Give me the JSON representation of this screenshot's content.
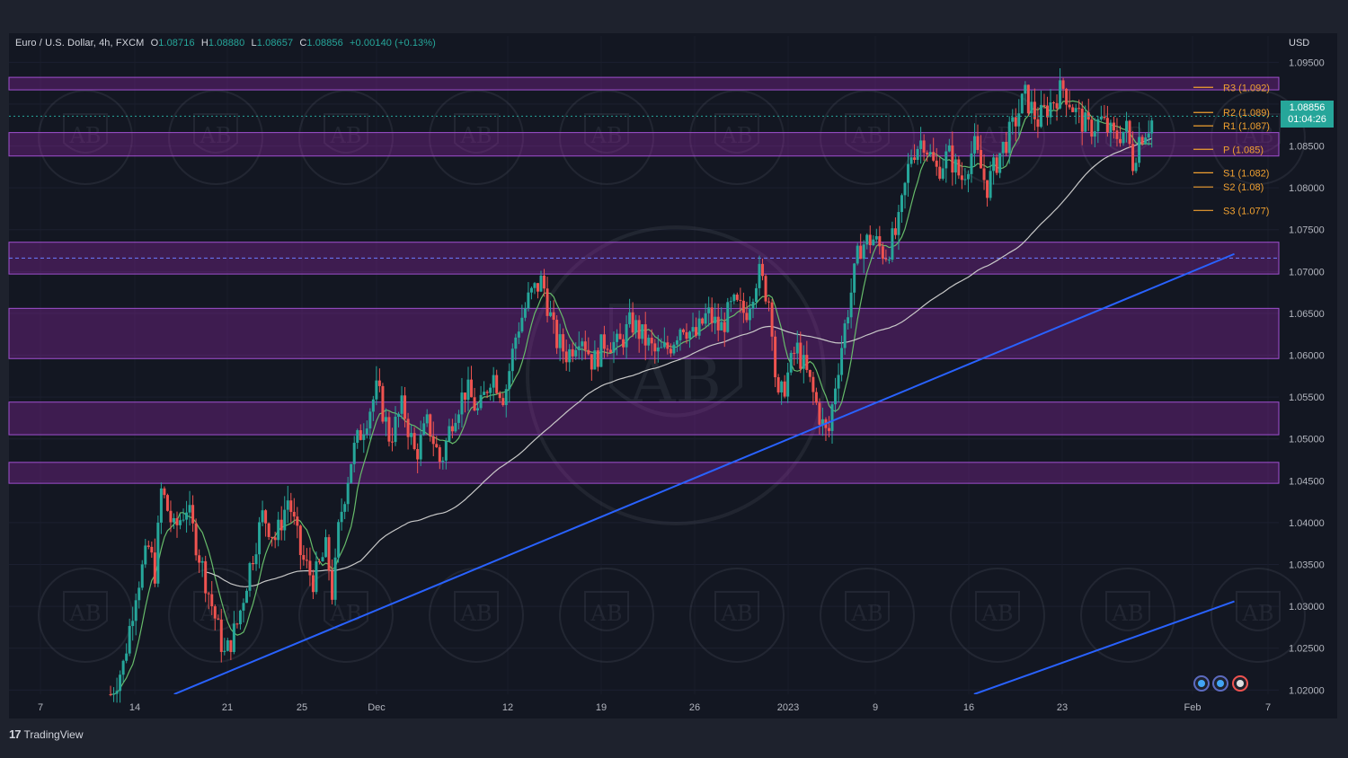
{
  "header": {
    "symbol": "Euro / U.S. Dollar, 4h, FXCM",
    "o_label": "O",
    "o_value": "1.08716",
    "h_label": "H",
    "h_value": "1.08880",
    "l_label": "L",
    "l_value": "1.08657",
    "c_label": "C",
    "c_value": "1.08856",
    "change": "+0.00140 (+0.13%)"
  },
  "currency": "USD",
  "last_price": {
    "price": "1.08856",
    "countdown": "01:04:26"
  },
  "branding": {
    "name": "TradingView",
    "mark": "17"
  },
  "chart_data": {
    "type": "candlestick",
    "symbol": "EURUSD",
    "timeframe": "4h",
    "ylim": [
      1.0195,
      1.096
    ],
    "y_ticks": [
      "1.02000",
      "1.02500",
      "1.03000",
      "1.03500",
      "1.04000",
      "1.04500",
      "1.05000",
      "1.05500",
      "1.06000",
      "1.06500",
      "1.07000",
      "1.07500",
      "1.08000",
      "1.08500",
      "1.09000",
      "1.09500"
    ],
    "x_ticks": [
      "7",
      "14",
      "21",
      "25",
      "Dec",
      "12",
      "19",
      "26",
      "2023",
      "9",
      "16",
      "23",
      "Feb",
      "7"
    ],
    "price_path": [
      [
        0.08,
        1.0195
      ],
      [
        0.09,
        1.023
      ],
      [
        0.1,
        1.032
      ],
      [
        0.11,
        1.037
      ],
      [
        0.115,
        1.034
      ],
      [
        0.12,
        1.044
      ],
      [
        0.13,
        1.039
      ],
      [
        0.14,
        1.042
      ],
      [
        0.15,
        1.036
      ],
      [
        0.16,
        1.03
      ],
      [
        0.17,
        1.024
      ],
      [
        0.18,
        1.028
      ],
      [
        0.19,
        1.035
      ],
      [
        0.2,
        1.041
      ],
      [
        0.21,
        1.038
      ],
      [
        0.22,
        1.043
      ],
      [
        0.23,
        1.036
      ],
      [
        0.24,
        1.033
      ],
      [
        0.25,
        1.037
      ],
      [
        0.255,
        1.031
      ],
      [
        0.26,
        1.04
      ],
      [
        0.27,
        1.048
      ],
      [
        0.28,
        1.052
      ],
      [
        0.29,
        1.056
      ],
      [
        0.3,
        1.05
      ],
      [
        0.31,
        1.054
      ],
      [
        0.32,
        1.048
      ],
      [
        0.33,
        1.052
      ],
      [
        0.34,
        1.047
      ],
      [
        0.35,
        1.053
      ],
      [
        0.36,
        1.056
      ],
      [
        0.37,
        1.053
      ],
      [
        0.38,
        1.058
      ],
      [
        0.39,
        1.055
      ],
      [
        0.4,
        1.063
      ],
      [
        0.41,
        1.067
      ],
      [
        0.42,
        1.069
      ],
      [
        0.43,
        1.062
      ],
      [
        0.44,
        1.06
      ],
      [
        0.45,
        1.063
      ],
      [
        0.46,
        1.059
      ],
      [
        0.47,
        1.062
      ],
      [
        0.48,
        1.061
      ],
      [
        0.49,
        1.064
      ],
      [
        0.5,
        1.062
      ],
      [
        0.51,
        1.06
      ],
      [
        0.52,
        1.061
      ],
      [
        0.53,
        1.064
      ],
      [
        0.54,
        1.062
      ],
      [
        0.55,
        1.065
      ],
      [
        0.56,
        1.063
      ],
      [
        0.57,
        1.066
      ],
      [
        0.58,
        1.065
      ],
      [
        0.59,
        1.07
      ],
      [
        0.6,
        1.066
      ],
      [
        0.605,
        1.054
      ],
      [
        0.61,
        1.056
      ],
      [
        0.62,
        1.061
      ],
      [
        0.63,
        1.057
      ],
      [
        0.64,
        1.052
      ],
      [
        0.645,
        1.05
      ],
      [
        0.65,
        1.056
      ],
      [
        0.66,
        1.065
      ],
      [
        0.67,
        1.073
      ],
      [
        0.68,
        1.074
      ],
      [
        0.69,
        1.072
      ],
      [
        0.7,
        1.075
      ],
      [
        0.71,
        1.084
      ],
      [
        0.72,
        1.086
      ],
      [
        0.73,
        1.082
      ],
      [
        0.74,
        1.084
      ],
      [
        0.75,
        1.081
      ],
      [
        0.76,
        1.085
      ],
      [
        0.77,
        1.08
      ],
      [
        0.78,
        1.084
      ],
      [
        0.79,
        1.087
      ],
      [
        0.8,
        1.091
      ],
      [
        0.81,
        1.088
      ],
      [
        0.82,
        1.09
      ],
      [
        0.83,
        1.092
      ],
      [
        0.84,
        1.089
      ],
      [
        0.85,
        1.087
      ],
      [
        0.86,
        1.088
      ],
      [
        0.87,
        1.086
      ],
      [
        0.88,
        1.087
      ],
      [
        0.885,
        1.083
      ],
      [
        0.89,
        1.086
      ],
      [
        0.9,
        1.088
      ]
    ],
    "series": [
      {
        "name": "fast MA",
        "color": "#66bb6a"
      },
      {
        "name": "slow MA",
        "color": "#c8c8c8"
      }
    ],
    "zones": [
      {
        "from": 1.0917,
        "to": 1.0932
      },
      {
        "from": 1.0838,
        "to": 1.0866
      },
      {
        "from": 1.0697,
        "to": 1.0735,
        "midline": 1.0716
      },
      {
        "from": 1.0596,
        "to": 1.0656
      },
      {
        "from": 1.0505,
        "to": 1.0544
      },
      {
        "from": 1.0447,
        "to": 1.0472
      }
    ],
    "trendlines": [
      {
        "x": [
          0.13,
          0.965
        ],
        "y": [
          1.0195,
          1.0721
        ]
      },
      {
        "x": [
          0.76,
          0.965
        ],
        "y": [
          1.0195,
          1.0306
        ]
      }
    ],
    "pivots": [
      {
        "label": "R3 (1.092)",
        "value": 1.092
      },
      {
        "label": "R2 (1.089)",
        "value": 1.089
      },
      {
        "label": "R1 (1.087)",
        "value": 1.0874
      },
      {
        "label": "P (1.085)",
        "value": 1.0846
      },
      {
        "label": "S1 (1.082)",
        "value": 1.0818
      },
      {
        "label": "S2 (1.08)",
        "value": 1.0801
      },
      {
        "label": "S3 (1.077)",
        "value": 1.0773
      }
    ],
    "last_price_value": 1.08856,
    "watermark": "AB",
    "colors": {
      "up": "#26a69a",
      "down": "#ef5350",
      "zone": "#9c27b0",
      "trend": "#2962ff",
      "pivot": "#f0a030"
    }
  }
}
